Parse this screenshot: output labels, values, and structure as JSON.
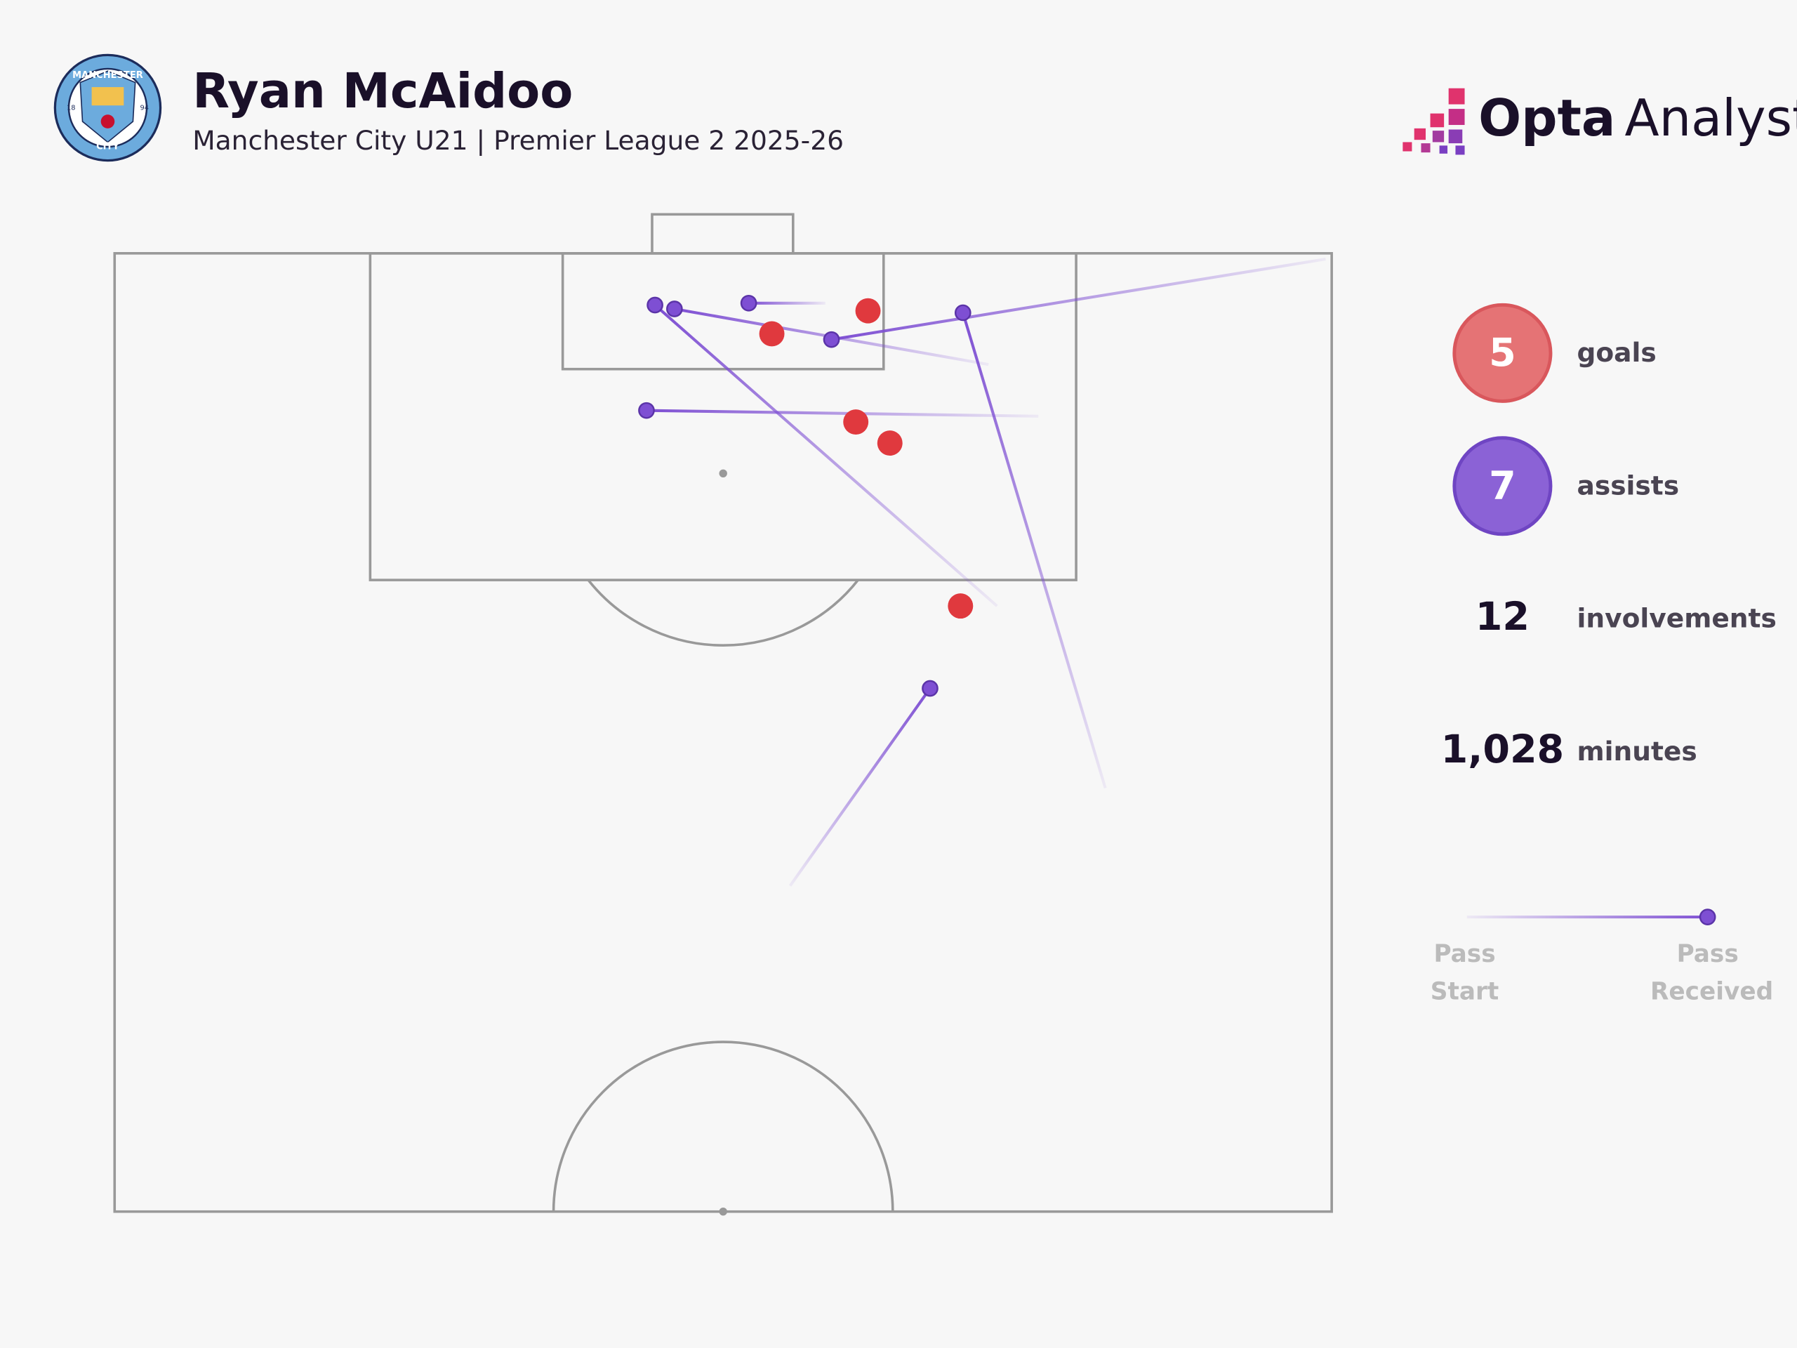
{
  "header": {
    "title": "Ryan McAidoo",
    "subtitle": "Manchester City U21 | Premier League 2 2025-26",
    "badge": {
      "top": "MANCHESTER",
      "bottom": "CITY",
      "left": "18",
      "right": "94"
    },
    "brand": [
      "Opta",
      "Analyst"
    ]
  },
  "chart_data": {
    "type": "pitch",
    "xlim": [
      0,
      100
    ],
    "ylim": [
      50,
      100
    ],
    "series": [
      {
        "name": "goals",
        "color": "#e0393e",
        "total": 5,
        "x": [
          61.9,
          54.0,
          60.9,
          63.7,
          69.5
        ],
        "y": [
          97.0,
          95.8,
          91.2,
          90.1,
          81.6
        ]
      },
      {
        "name": "assists",
        "color": "#7e4fd3",
        "total": 7,
        "x": [
          44.4,
          46.0,
          52.1,
          58.9,
          69.7,
          43.7,
          67.0
        ],
        "y": [
          97.3,
          97.1,
          97.4,
          95.5,
          96.9,
          91.8,
          77.3
        ],
        "start_x": [
          72.5,
          71.8,
          58.4,
          99.5,
          81.4,
          75.9,
          55.5
        ],
        "start_y": [
          81.6,
          94.2,
          97.4,
          99.7,
          72.1,
          91.5,
          67.0
        ]
      }
    ],
    "stats": [
      {
        "label": "involvements",
        "value": 12
      },
      {
        "label": "minutes",
        "value": 1028,
        "value_label": "1,028"
      }
    ],
    "legend": {
      "start": "Pass Start",
      "end": "Pass Received"
    }
  }
}
